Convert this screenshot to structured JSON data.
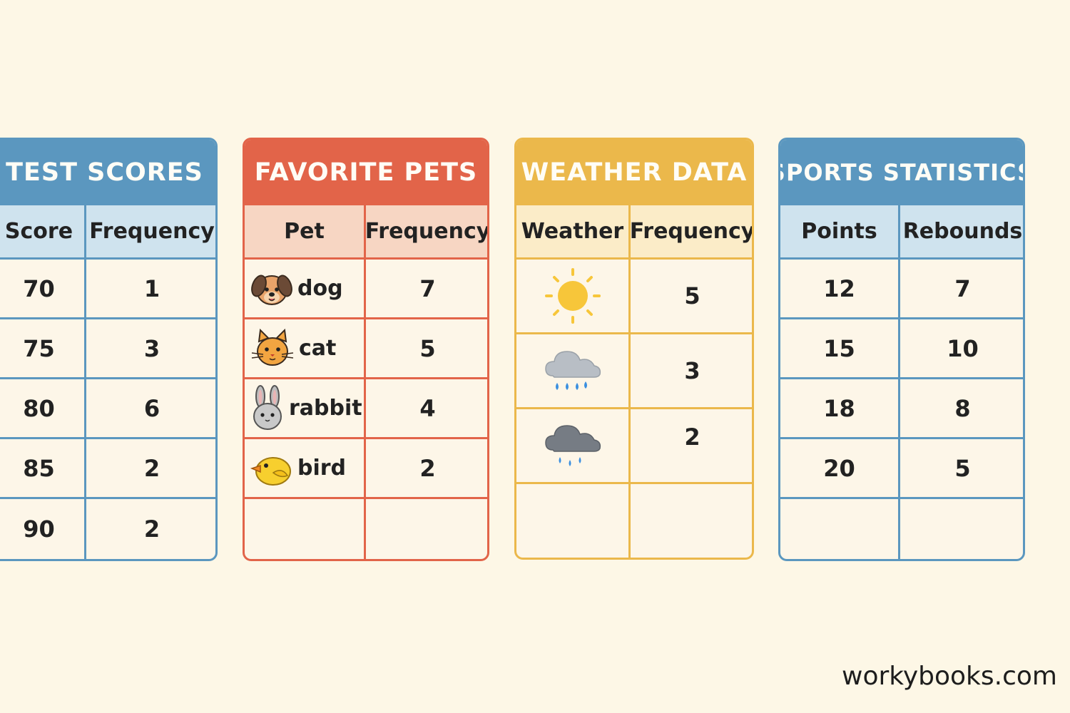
{
  "tables": [
    {
      "title": "TEST SCORES",
      "headers": [
        "Score",
        "Frequency"
      ],
      "rows": [
        [
          "70",
          "1"
        ],
        [
          "75",
          "3"
        ],
        [
          "80",
          "6"
        ],
        [
          "85",
          "2"
        ],
        [
          "90",
          "2"
        ]
      ],
      "color": "#5b97bf"
    },
    {
      "title": "FAVORITE PETS",
      "headers": [
        "Pet",
        "Frequency"
      ],
      "rows": [
        {
          "icon": "dog-icon",
          "label": "dog",
          "value": "7"
        },
        {
          "icon": "cat-icon",
          "label": "cat",
          "value": "5"
        },
        {
          "icon": "rabbit-icon",
          "label": "rabbit",
          "value": "4"
        },
        {
          "icon": "bird-icon",
          "label": "bird",
          "value": "2"
        }
      ],
      "color": "#e26449"
    },
    {
      "title": "WEATHER DATA",
      "headers": [
        "Weather",
        "Frequency"
      ],
      "rows": [
        {
          "icon": "sun-icon",
          "value": "5"
        },
        {
          "icon": "light-rain-cloud-icon",
          "value": "3"
        },
        {
          "icon": "dark-rain-cloud-icon",
          "value": "2"
        }
      ],
      "color": "#ebb84b"
    },
    {
      "title": "SPORTS STATISTICS",
      "headers": [
        "Points",
        "Rebounds"
      ],
      "rows": [
        [
          "12",
          "7"
        ],
        [
          "15",
          "10"
        ],
        [
          "18",
          "8"
        ],
        [
          "20",
          "5"
        ]
      ],
      "color": "#5b97bf"
    }
  ],
  "watermark": "workybooks.com"
}
